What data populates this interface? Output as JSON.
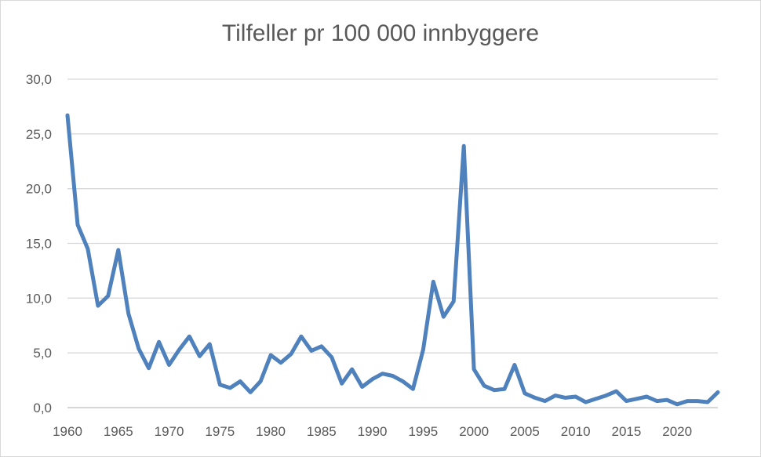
{
  "chart_data": {
    "type": "line",
    "title": "Tilfeller pr 100 000 innbyggere",
    "xlabel": "",
    "ylabel": "",
    "xlim": [
      1960,
      2024
    ],
    "ylim": [
      0,
      30
    ],
    "x_ticks": [
      "1960",
      "1965",
      "1970",
      "1975",
      "1980",
      "1985",
      "1990",
      "1995",
      "2000",
      "2005",
      "2010",
      "2015",
      "2020"
    ],
    "y_ticks": [
      "0,0",
      "5,0",
      "10,0",
      "15,0",
      "20,0",
      "25,0",
      "30,0"
    ],
    "grid": "horizontal",
    "legend": "none",
    "line_color": "#4f81bd",
    "series": [
      {
        "x": [
          1960,
          1961,
          1962,
          1963,
          1964,
          1965,
          1966,
          1967,
          1968,
          1969,
          1970,
          1971,
          1972,
          1973,
          1974,
          1975,
          1976,
          1977,
          1978,
          1979,
          1980,
          1981,
          1982,
          1983,
          1984,
          1985,
          1986,
          1987,
          1988,
          1989,
          1990,
          1991,
          1992,
          1993,
          1994,
          1995,
          1996,
          1997,
          1998,
          1999,
          2000,
          2001,
          2002,
          2003,
          2004,
          2005,
          2006,
          2007,
          2008,
          2009,
          2010,
          2011,
          2012,
          2013,
          2014,
          2015,
          2016,
          2017,
          2018,
          2019,
          2020,
          2021,
          2022,
          2023,
          2024
        ],
        "values": [
          26.7,
          16.7,
          14.5,
          9.3,
          10.2,
          14.4,
          8.6,
          5.4,
          3.6,
          6.0,
          3.9,
          5.3,
          6.5,
          4.7,
          5.8,
          2.1,
          1.8,
          2.4,
          1.4,
          2.4,
          4.8,
          4.1,
          4.9,
          6.5,
          5.2,
          5.6,
          4.6,
          2.2,
          3.5,
          1.9,
          2.6,
          3.1,
          2.9,
          2.4,
          1.7,
          5.3,
          11.5,
          8.3,
          9.7,
          23.9,
          3.5,
          2.0,
          1.6,
          1.7,
          3.9,
          1.3,
          0.9,
          0.6,
          1.1,
          0.9,
          1.0,
          0.5,
          0.8,
          1.1,
          1.5,
          0.6,
          0.8,
          1.0,
          0.6,
          0.7,
          0.3,
          0.6,
          0.6,
          0.5,
          1.4
        ]
      }
    ]
  }
}
